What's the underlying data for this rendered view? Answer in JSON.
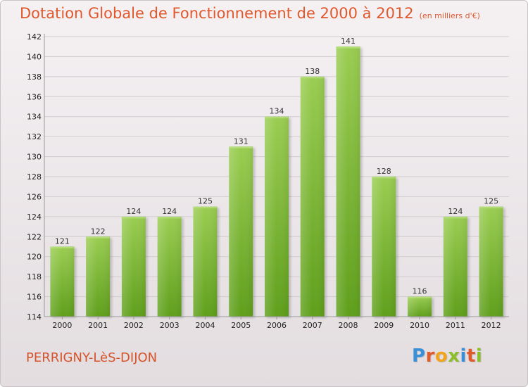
{
  "chart_data": {
    "type": "bar",
    "title": "Dotation Globale de Fonctionnement de 2000 à 2012",
    "subtitle": "(en milliers d'€)",
    "categories": [
      "2000",
      "2001",
      "2002",
      "2003",
      "2004",
      "2005",
      "2006",
      "2007",
      "2008",
      "2009",
      "2010",
      "2011",
      "2012"
    ],
    "values": [
      121,
      122,
      124,
      124,
      125,
      131,
      134,
      138,
      141,
      128,
      116,
      124,
      125
    ],
    "ylim": [
      114,
      142
    ],
    "yticks": [
      114,
      116,
      118,
      120,
      122,
      124,
      126,
      128,
      130,
      132,
      134,
      136,
      138,
      140,
      142
    ],
    "grid": true,
    "colors": {
      "bar": "#7fbf3a",
      "bar_dark": "#5e9e20",
      "grid": "#d2ccd0",
      "title": "#e0572c"
    }
  },
  "footer": {
    "place": "PERRIGNY-LèS-DIJON",
    "logo": "Proxiti",
    "logo_colors": [
      "#3a8fd9",
      "#e05a2a",
      "#f2a51c",
      "#8bbf2a",
      "#3a8fd9",
      "#e05a2a",
      "#8bbf2a"
    ]
  }
}
